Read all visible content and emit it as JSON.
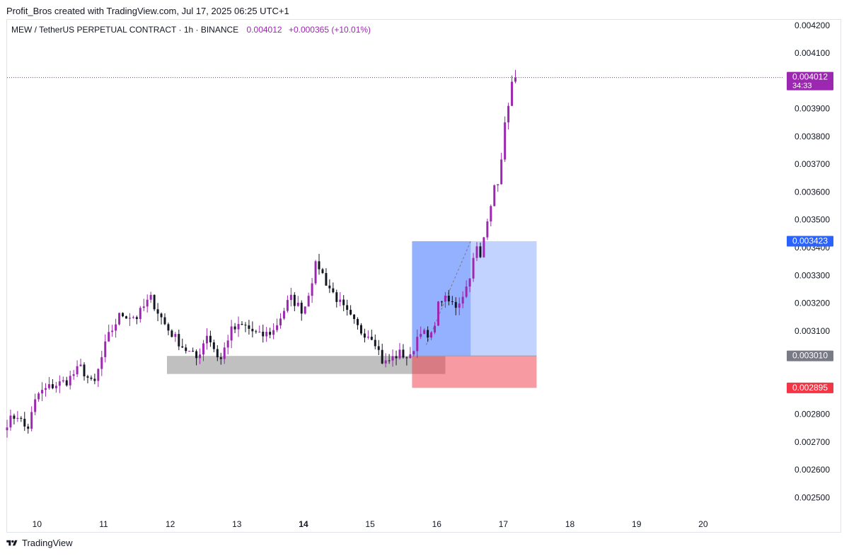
{
  "header": {
    "credit": "Profit_Bros created with TradingView.com, Jul 17, 2025 06:25 UTC+1"
  },
  "legend": {
    "symbol": "MEW / TetherUS PERPETUAL CONTRACT · 1h · BINANCE",
    "price": "0.004012",
    "change": "+0.000365 (+10.01%)"
  },
  "footer": {
    "brand": "TradingView",
    "logo_icon": "tradingview-logo-icon"
  },
  "colors": {
    "up": "#9c27b0",
    "down": "#131722",
    "target_zone": "#2962ff",
    "stop_zone": "#f23645",
    "demand_zone": "#9e9e9e",
    "current_price_line": "#9c27b0"
  },
  "chart_data": {
    "type": "candlestick",
    "symbol": "MEW/USDT Perpetual",
    "interval": "1h",
    "x_ticks": [
      {
        "label": "10",
        "day": 10
      },
      {
        "label": "11",
        "day": 11
      },
      {
        "label": "12",
        "day": 12
      },
      {
        "label": "13",
        "day": 13
      },
      {
        "label": "14",
        "day": 14,
        "bold": true
      },
      {
        "label": "15",
        "day": 15
      },
      {
        "label": "16",
        "day": 16
      },
      {
        "label": "17",
        "day": 17
      },
      {
        "label": "18",
        "day": 18
      },
      {
        "label": "19",
        "day": 19
      },
      {
        "label": "20",
        "day": 20
      }
    ],
    "y_ticks": [
      "0.002500",
      "0.002600",
      "0.002700",
      "0.002800",
      "0.003100",
      "0.003200",
      "0.003300",
      "0.003400",
      "0.003500",
      "0.003600",
      "0.003700",
      "0.003800",
      "0.003900",
      "0.004100",
      "0.004200"
    ],
    "ylim": [
      0.00244,
      0.00422
    ],
    "xlim_days": [
      9.55,
      21.0
    ],
    "price_labels": [
      {
        "value": 0.004012,
        "text": "0.004012",
        "subtext": "34:33",
        "color": "#9c27b0",
        "role": "current"
      },
      {
        "value": 0.003423,
        "text": "0.003423",
        "color": "#2962ff",
        "role": "target"
      },
      {
        "value": 0.00301,
        "text": "0.003010",
        "color": "#787b86",
        "role": "entry"
      },
      {
        "value": 0.002895,
        "text": "0.002895",
        "color": "#f23645",
        "role": "stop"
      }
    ],
    "current_price": 0.004012,
    "long_position": {
      "start_day": 15.63,
      "end_day": 17.5,
      "entry": 0.00301,
      "target": 0.003423,
      "stop": 0.002895,
      "filled_until_day": 16.51
    },
    "demand_zone": {
      "start_day": 11.95,
      "end_day": 16.13,
      "top": 0.00301,
      "bottom": 0.002945
    },
    "path": [
      [
        9.55,
        0.00277
      ],
      [
        9.7,
        0.0028
      ],
      [
        9.85,
        0.00274
      ],
      [
        10.0,
        0.00287
      ],
      [
        10.2,
        0.0029
      ],
      [
        10.45,
        0.00292
      ],
      [
        10.65,
        0.00297
      ],
      [
        10.85,
        0.0029
      ],
      [
        11.05,
        0.00307
      ],
      [
        11.25,
        0.00316
      ],
      [
        11.5,
        0.00315
      ],
      [
        11.7,
        0.00322
      ],
      [
        11.95,
        0.00311
      ],
      [
        12.2,
        0.00304
      ],
      [
        12.4,
        0.003
      ],
      [
        12.55,
        0.00309
      ],
      [
        12.75,
        0.00299
      ],
      [
        12.9,
        0.0031
      ],
      [
        13.1,
        0.00312
      ],
      [
        13.35,
        0.00308
      ],
      [
        13.55,
        0.0031
      ],
      [
        13.8,
        0.00322
      ],
      [
        14.0,
        0.00317
      ],
      [
        14.2,
        0.00335
      ],
      [
        14.35,
        0.00327
      ],
      [
        14.6,
        0.00318
      ],
      [
        14.85,
        0.0031
      ],
      [
        15.05,
        0.00308
      ],
      [
        15.2,
        0.00298
      ],
      [
        15.45,
        0.00302
      ],
      [
        15.6,
        0.003
      ],
      [
        15.75,
        0.00311
      ],
      [
        15.9,
        0.00306
      ],
      [
        16.05,
        0.00322
      ],
      [
        16.3,
        0.00319
      ],
      [
        16.45,
        0.00326
      ],
      [
        16.6,
        0.0034
      ],
      [
        16.65,
        0.00335
      ],
      [
        16.75,
        0.0035
      ],
      [
        16.85,
        0.0036
      ],
      [
        16.95,
        0.00366
      ],
      [
        17.05,
        0.0039
      ],
      [
        17.1,
        0.00395
      ],
      [
        17.16,
        0.00402
      ],
      [
        17.22,
        0.00401
      ]
    ]
  }
}
